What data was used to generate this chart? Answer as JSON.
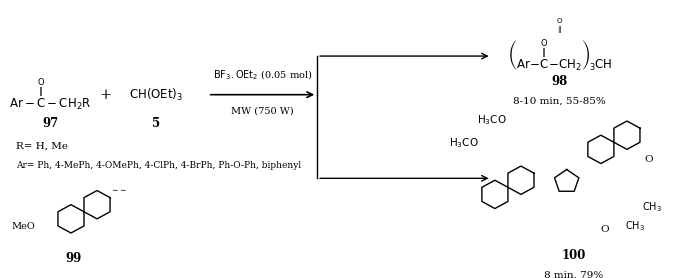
{
  "background_color": "#ffffff",
  "figsize": [
    6.98,
    2.78
  ],
  "dpi": 100,
  "title": "",
  "elements": {
    "reagent97_label": "97",
    "reagent5_label": "5",
    "product98_label": "98",
    "product98_yield": "8-10 min, 55-85%",
    "product100_label": "100",
    "product100_yield": "8 min, 79%",
    "compound99_label": "99",
    "catalyst": "BF₃.OEt₂ (0.05 mol)",
    "conditions": "MW (750 W)",
    "r_group": "R= H, Me",
    "ar_group": "Ar= Ph, 4-MePh, 4-OMePh, 4-ClPh, 4-BrPh, Ph-O-Ph, biphenyl",
    "reagent97_formula": "Ar–ᶜ–CH₂R",
    "reagent5_formula": "CH(OEt)₃",
    "product98_formula": "(Ar–ᶜ–CH₂)₃CH"
  }
}
